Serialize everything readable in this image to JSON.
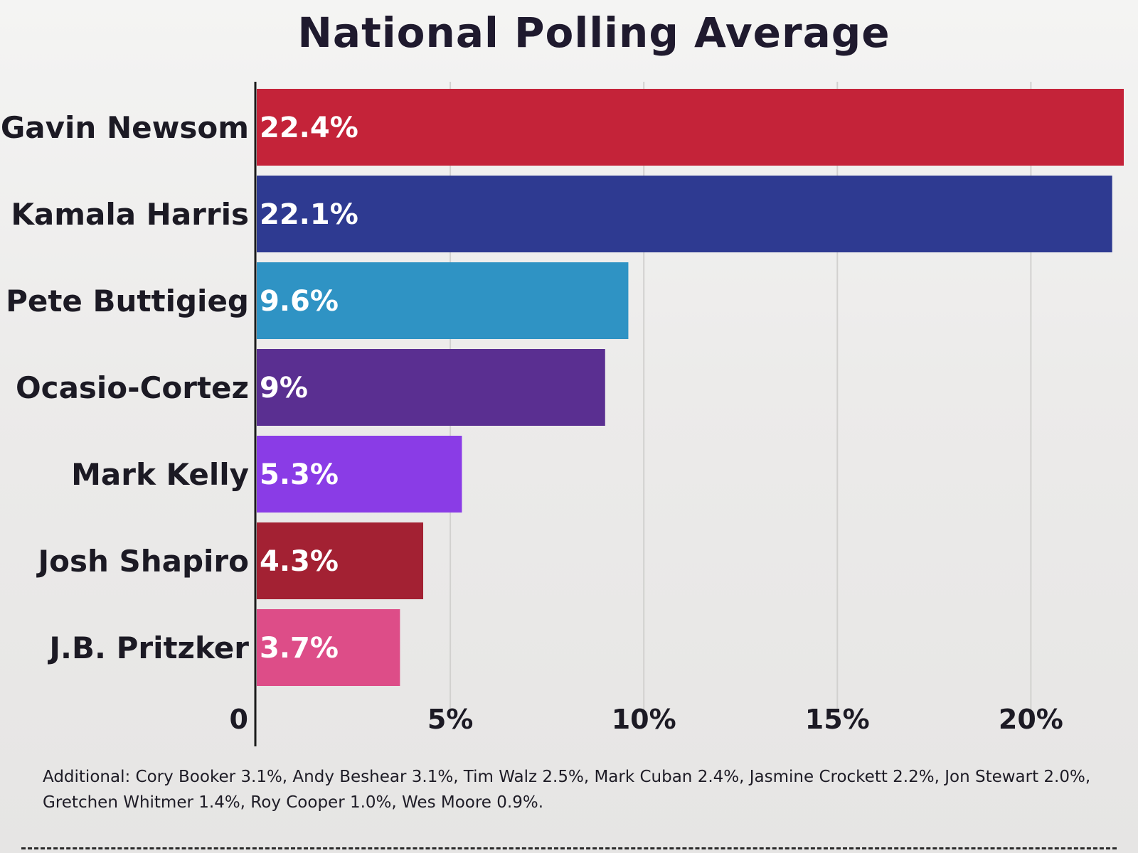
{
  "chart_data": {
    "type": "bar",
    "orientation": "horizontal",
    "title": "National Polling Average",
    "categories": [
      "Gavin Newsom",
      "Kamala Harris",
      "Pete Buttigieg",
      "Ocasio-Cortez",
      "Mark Kelly",
      "Josh Shapiro",
      "J.B. Pritzker"
    ],
    "values": [
      22.4,
      22.1,
      9.6,
      9,
      5.3,
      4.3,
      3.7
    ],
    "value_labels": [
      "22.4%",
      "22.1%",
      "9.6%",
      "9%",
      "5.3%",
      "4.3%",
      "3.7%"
    ],
    "colors": [
      "#c42339",
      "#2e3a91",
      "#2f93c4",
      "#5a2f91",
      "#8a3ce6",
      "#a32133",
      "#dd4d88"
    ],
    "xticks": [
      0,
      5,
      10,
      15,
      20
    ],
    "xtick_labels": [
      "0",
      "5%",
      "10%",
      "15%",
      "20%"
    ],
    "xlim": [
      0,
      22.4
    ],
    "xlabel": "",
    "ylabel": "",
    "grid": true,
    "footnote": "Additional: Cory Booker 3.1%, Andy Beshear 3.1%, Tim Walz 2.5%, Mark Cuban 2.4%, Jasmine Crockett 2.2%, Jon Stewart 2.0%, Gretchen Whitmer 1.4%, Roy Cooper 1.0%, Wes Moore 0.9%."
  }
}
